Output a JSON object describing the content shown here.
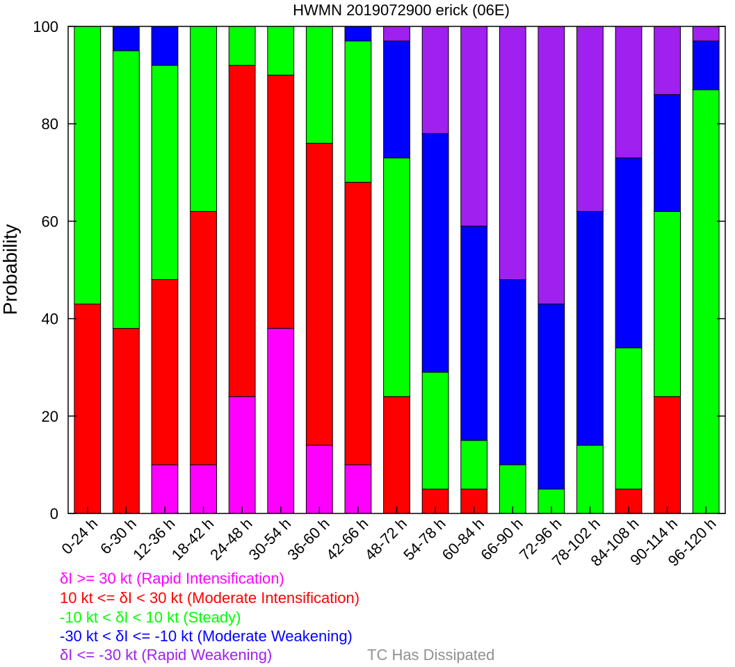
{
  "chart_data": {
    "type": "bar",
    "stacked": true,
    "title": "HWMN 2019072900 erick (06E)",
    "xlabel": "",
    "ylabel": "Probability",
    "ylim": [
      0,
      100
    ],
    "yticks": [
      "0",
      "20",
      "40",
      "60",
      "80",
      "100"
    ],
    "grid": false,
    "categories": [
      "0-24 h",
      "6-30 h",
      "12-36 h",
      "18-42 h",
      "24-48 h",
      "30-54 h",
      "36-60 h",
      "42-66 h",
      "48-72 h",
      "54-78 h",
      "60-84 h",
      "66-90 h",
      "72-96 h",
      "78-102 h",
      "84-108 h",
      "90-114 h",
      "96-120 h"
    ],
    "series": [
      {
        "name": "δI >= 30 kt (Rapid Intensification)",
        "color": "#ff00ff",
        "values": [
          0,
          0,
          10,
          10,
          24,
          38,
          14,
          10,
          0,
          0,
          0,
          0,
          0,
          0,
          0,
          0,
          0
        ]
      },
      {
        "name": "10 kt <= δI < 30 kt (Moderate Intensification)",
        "color": "#ff0000",
        "values": [
          43,
          38,
          38,
          52,
          68,
          52,
          62,
          58,
          24,
          5,
          5,
          0,
          0,
          0,
          5,
          24,
          0
        ]
      },
      {
        "name": "-10 kt < δI < 10 kt (Steady)",
        "color": "#00ff00",
        "values": [
          57,
          57,
          44,
          38,
          8,
          10,
          24,
          29,
          49,
          24,
          10,
          10,
          5,
          14,
          29,
          38,
          87
        ]
      },
      {
        "name": "-30 kt < δI <= -10 kt (Moderate Weakening)",
        "color": "#0000ff",
        "values": [
          0,
          5,
          8,
          0,
          0,
          0,
          0,
          3,
          24,
          49,
          44,
          38,
          38,
          48,
          39,
          24,
          10
        ]
      },
      {
        "name": "δI <= -30 kt (Rapid Weakening)",
        "color": "#a020f0",
        "values": [
          0,
          0,
          0,
          0,
          0,
          0,
          0,
          0,
          3,
          22,
          41,
          52,
          57,
          38,
          27,
          14,
          3
        ]
      }
    ]
  },
  "legend": {
    "ri": "δI >= 30 kt (Rapid Intensification)",
    "mi": "10 kt <= δI < 30 kt (Moderate Intensification)",
    "steady": "-10 kt < δI < 10 kt (Steady)",
    "mw": "-30 kt < δI <= -10 kt (Moderate Weakening)",
    "rw": "δI <= -30 kt (Rapid Weakening)",
    "dissipated": "TC Has Dissipated",
    "dissipated_color": "#909090"
  }
}
